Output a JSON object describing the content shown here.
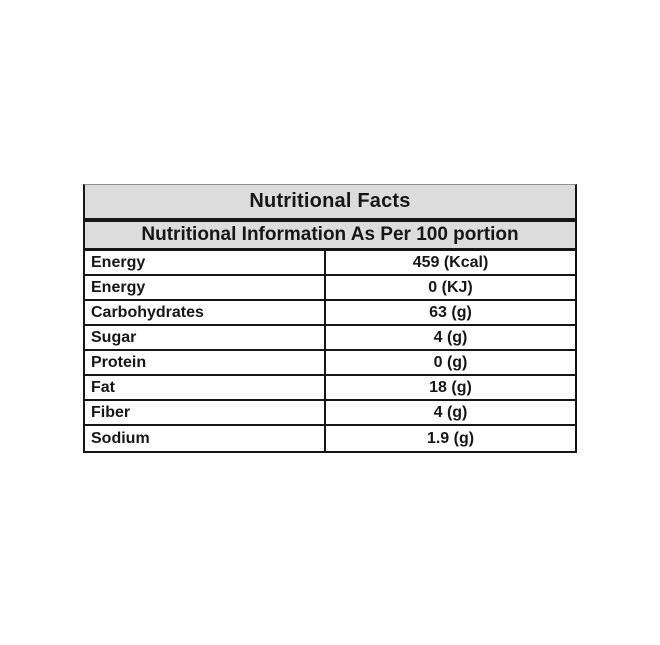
{
  "page": {
    "background": "#ffffff"
  },
  "table": {
    "title": "Nutritional Facts",
    "subtitle": "Nutritional Information As Per 100 portion",
    "rows": [
      {
        "label": "Energy",
        "value": "459 (Kcal)"
      },
      {
        "label": "Energy",
        "value": "0 (KJ)"
      },
      {
        "label": "Carbohydrates",
        "value": "63 (g)"
      },
      {
        "label": "Sugar",
        "value": "4 (g)"
      },
      {
        "label": "Protein",
        "value": "0 (g)"
      },
      {
        "label": "Fat",
        "value": "18 (g)"
      },
      {
        "label": "Fiber",
        "value": "4 (g)"
      },
      {
        "label": "Sodium",
        "value": "1.9 (g)"
      }
    ],
    "colors": {
      "header_bg": "#dcdcdc",
      "border": "#161616",
      "text": "#161616"
    }
  }
}
